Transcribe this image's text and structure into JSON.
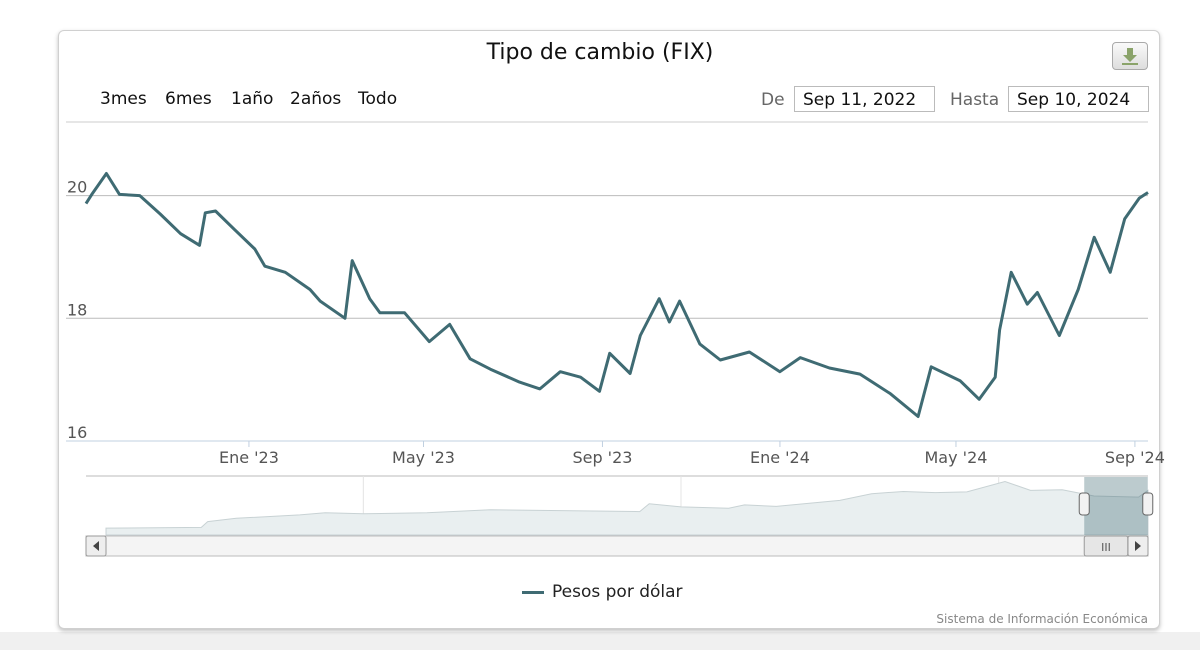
{
  "title": "Tipo de cambio (FIX)",
  "range_buttons": [
    "3mes",
    "6mes",
    "1año",
    "2años",
    "Todo"
  ],
  "from_label": "De",
  "from_value": "Sep 11, 2022",
  "to_label": "Hasta",
  "to_value": "Sep 10, 2024",
  "credit": "Sistema de Información Económica",
  "icons": {
    "export": "download-icon",
    "scroll_left": "arrow-left-icon",
    "scroll_right": "arrow-right-icon",
    "scroll_grip": "grip-icon"
  },
  "chart_data": {
    "type": "line",
    "series": [
      {
        "name": "Pesos por dólar",
        "color": "#3f6b73",
        "points": [
          [
            "2022-09-11",
            19.87
          ],
          [
            "2022-09-15",
            20.02
          ],
          [
            "2022-09-25",
            20.36
          ],
          [
            "2022-10-04",
            20.02
          ],
          [
            "2022-10-18",
            20.0
          ],
          [
            "2022-11-01",
            19.7
          ],
          [
            "2022-11-15",
            19.38
          ],
          [
            "2022-11-28",
            19.19
          ],
          [
            "2022-12-02",
            19.72
          ],
          [
            "2022-12-09",
            19.75
          ],
          [
            "2022-12-22",
            19.45
          ],
          [
            "2023-01-05",
            19.13
          ],
          [
            "2023-01-12",
            18.85
          ],
          [
            "2023-01-26",
            18.75
          ],
          [
            "2023-02-12",
            18.47
          ],
          [
            "2023-02-19",
            18.28
          ],
          [
            "2023-03-08",
            18.0
          ],
          [
            "2023-03-13",
            18.94
          ],
          [
            "2023-03-25",
            18.32
          ],
          [
            "2023-04-01",
            18.09
          ],
          [
            "2023-04-18",
            18.09
          ],
          [
            "2023-05-05",
            17.62
          ],
          [
            "2023-05-19",
            17.9
          ],
          [
            "2023-06-02",
            17.34
          ],
          [
            "2023-06-16",
            17.17
          ],
          [
            "2023-07-06",
            16.96
          ],
          [
            "2023-07-20",
            16.85
          ],
          [
            "2023-08-03",
            17.13
          ],
          [
            "2023-08-17",
            17.04
          ],
          [
            "2023-08-30",
            16.81
          ],
          [
            "2023-09-06",
            17.43
          ],
          [
            "2023-09-20",
            17.1
          ],
          [
            "2023-09-27",
            17.72
          ],
          [
            "2023-10-10",
            18.32
          ],
          [
            "2023-10-17",
            17.94
          ],
          [
            "2023-10-24",
            18.28
          ],
          [
            "2023-11-07",
            17.58
          ],
          [
            "2023-11-21",
            17.32
          ],
          [
            "2023-12-11",
            17.45
          ],
          [
            "2024-01-01",
            17.13
          ],
          [
            "2024-01-15",
            17.36
          ],
          [
            "2024-02-04",
            17.19
          ],
          [
            "2024-02-25",
            17.09
          ],
          [
            "2024-03-17",
            16.77
          ],
          [
            "2024-04-05",
            16.4
          ],
          [
            "2024-04-14",
            17.21
          ],
          [
            "2024-05-04",
            16.98
          ],
          [
            "2024-05-17",
            16.68
          ],
          [
            "2024-05-28",
            17.04
          ],
          [
            "2024-05-31",
            17.81
          ],
          [
            "2024-06-08",
            18.75
          ],
          [
            "2024-06-19",
            18.23
          ],
          [
            "2024-06-26",
            18.42
          ],
          [
            "2024-07-11",
            17.72
          ],
          [
            "2024-07-24",
            18.47
          ],
          [
            "2024-08-04",
            19.32
          ],
          [
            "2024-08-15",
            18.75
          ],
          [
            "2024-08-25",
            19.62
          ],
          [
            "2024-09-04",
            19.96
          ],
          [
            "2024-09-10",
            20.05
          ]
        ]
      }
    ],
    "xlim": [
      "2022-09-11",
      "2024-09-10"
    ],
    "x_ticks": [
      [
        "2023-01-01",
        "Ene '23"
      ],
      [
        "2023-05-01",
        "May '23"
      ],
      [
        "2023-09-01",
        "Sep '23"
      ],
      [
        "2024-01-01",
        "Ene '24"
      ],
      [
        "2024-05-01",
        "May '24"
      ],
      [
        "2024-09-01",
        "Sep '24"
      ]
    ],
    "ylim": [
      16,
      21.2
    ],
    "y_ticks": [
      16,
      18,
      20
    ],
    "grid": true,
    "legend": "bottom",
    "navigator": {
      "xlim": [
        1991.9,
        2024.7
      ],
      "x_ticks": [
        2000,
        2010,
        2020
      ],
      "ylim": [
        0,
        26
      ],
      "selected": [
        "2022-09-11",
        "2024-09-10"
      ],
      "points": [
        [
          1991.9,
          3.1
        ],
        [
          1994.9,
          3.4
        ],
        [
          1995.1,
          6
        ],
        [
          1996,
          7.5
        ],
        [
          1998,
          9
        ],
        [
          1998.8,
          10
        ],
        [
          2000,
          9.5
        ],
        [
          2002,
          10
        ],
        [
          2004,
          11.3
        ],
        [
          2008.7,
          10.5
        ],
        [
          2009,
          14
        ],
        [
          2010,
          12.6
        ],
        [
          2011.5,
          12
        ],
        [
          2012,
          13.5
        ],
        [
          2013,
          12.8
        ],
        [
          2015,
          15.5
        ],
        [
          2016,
          18.5
        ],
        [
          2017,
          19.5
        ],
        [
          2018,
          19
        ],
        [
          2019,
          19.3
        ],
        [
          2020.2,
          24
        ],
        [
          2021,
          20
        ],
        [
          2022,
          20.3
        ],
        [
          2023,
          17.5
        ],
        [
          2024.4,
          17
        ],
        [
          2024.7,
          20
        ]
      ]
    }
  }
}
